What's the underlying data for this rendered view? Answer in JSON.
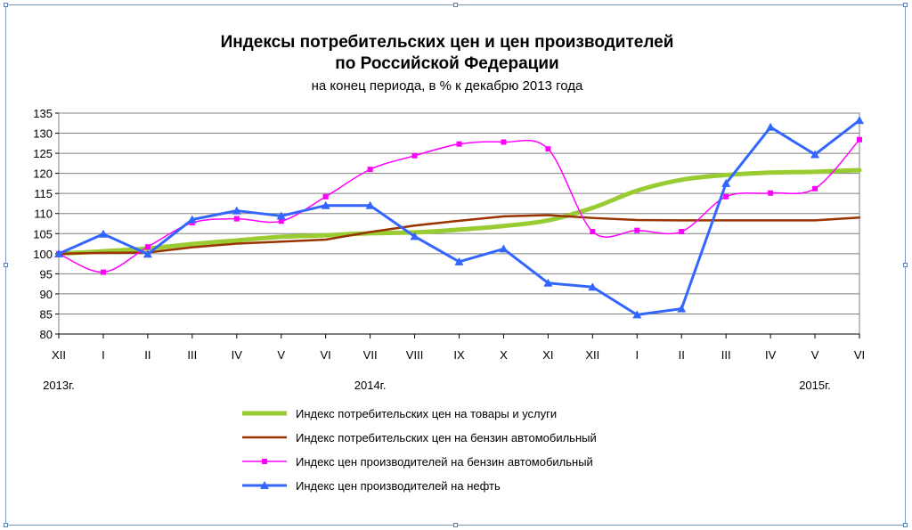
{
  "chart_data": {
    "type": "line",
    "title": "Индексы потребительских цен и цен производителей",
    "title_line2": "по Российской Федерации",
    "subtitle": "на конец периода, в % к декабрю 2013 года",
    "categories": [
      "XII",
      "I",
      "II",
      "III",
      "IV",
      "V",
      "VI",
      "VII",
      "VIII",
      "IX",
      "X",
      "XI",
      "XII",
      "I",
      "II",
      "III",
      "IV",
      "V",
      "VI"
    ],
    "year_labels": [
      {
        "index": 0,
        "text": "2013г."
      },
      {
        "index": 7,
        "text": "2014г."
      },
      {
        "index": 17,
        "text": "2015г."
      }
    ],
    "ylim": [
      80,
      135
    ],
    "yticks": [
      80,
      85,
      90,
      95,
      100,
      105,
      110,
      115,
      120,
      125,
      130,
      135
    ],
    "grid": true,
    "legend_position": "bottom",
    "series": [
      {
        "name": "Индекс потребительских цен на товары и услуги",
        "color": "#99cc33",
        "marker": "none",
        "smooth": true,
        "width": 5,
        "values": [
          100,
          100.6,
          101.3,
          102.4,
          103.3,
          104.2,
          104.6,
          105.1,
          105.3,
          106.0,
          106.9,
          108.3,
          111.4,
          115.7,
          118.4,
          119.6,
          120.2,
          120.4,
          120.8
        ]
      },
      {
        "name": "Индекс потребительских цен на бензин автомобильный",
        "color": "#993300",
        "marker": "none",
        "smooth": false,
        "width": 2.5,
        "values": [
          100,
          100.2,
          100.3,
          101.6,
          102.5,
          103.0,
          103.5,
          105.4,
          107.0,
          108.2,
          109.3,
          109.6,
          108.9,
          108.4,
          108.3,
          108.3,
          108.3,
          108.3,
          109.0
        ]
      },
      {
        "name": "Индекс цен производителей на бензин автомобильный",
        "color": "#ff00ff",
        "marker": "square",
        "smooth": true,
        "width": 1.5,
        "values": [
          100,
          95.4,
          101.7,
          107.7,
          108.7,
          108.1,
          114.2,
          121.0,
          124.4,
          127.3,
          127.8,
          126.1,
          105.5,
          105.8,
          105.5,
          114.2,
          115.1,
          116.2,
          128.4
        ]
      },
      {
        "name": "Индекс цен производителей на нефть",
        "color": "#3366ff",
        "marker": "triangle",
        "smooth": false,
        "width": 3,
        "values": [
          100,
          104.9,
          99.9,
          108.5,
          110.7,
          109.4,
          112.0,
          112.0,
          104.3,
          98.0,
          101.2,
          92.7,
          91.7,
          84.8,
          86.3,
          117.5,
          131.5,
          124.7,
          133.2
        ]
      }
    ]
  }
}
